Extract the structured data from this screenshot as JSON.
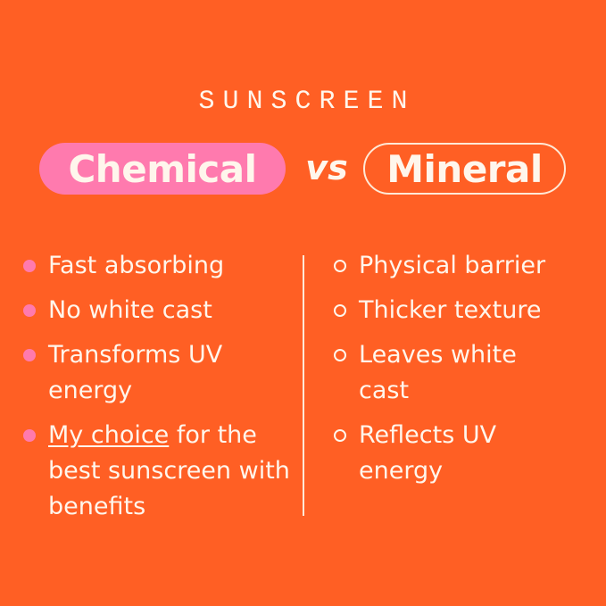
{
  "kicker": "SUNSCREEN",
  "title": {
    "left": "Chemical",
    "vs": "vs",
    "right": "Mineral"
  },
  "colors": {
    "background": "#FF5F24",
    "pink": "#FF7AAE",
    "cream": "#FFF6EC"
  },
  "chemical": [
    {
      "text": "Fast absorbing"
    },
    {
      "text": "No white cast"
    },
    {
      "text": "Transforms UV energy"
    },
    {
      "underlined": "My choice",
      "text": " for the best sunscreen with benefits"
    }
  ],
  "mineral": [
    {
      "text": "Physical barrier"
    },
    {
      "text": "Thicker texture"
    },
    {
      "text": "Leaves white cast"
    },
    {
      "text": "Reflects UV energy"
    }
  ]
}
